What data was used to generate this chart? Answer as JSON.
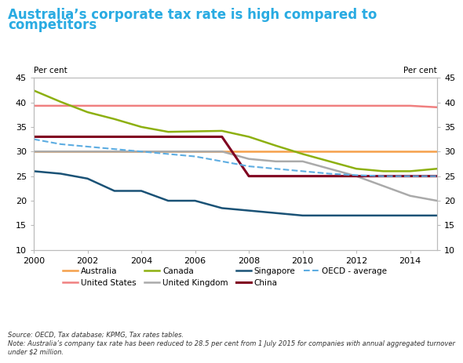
{
  "title_line1": "Australia’s corporate tax rate is high compared to",
  "title_line2": "competitors",
  "title_color": "#29abe2",
  "ylabel_left": "Per cent",
  "ylabel_right": "Per cent",
  "ylim": [
    10,
    45
  ],
  "yticks": [
    10,
    15,
    20,
    25,
    30,
    35,
    40,
    45
  ],
  "xticks": [
    2000,
    2002,
    2004,
    2006,
    2008,
    2010,
    2012,
    2014
  ],
  "source_text": "Source: OECD, Tax database; KPMG, Tax rates tables.\nNote: Australia’s company tax rate has been reduced to 28.5 per cent from 1 July 2015 for companies with annual aggregated turnover under $2 million.",
  "legend_order": [
    "Australia",
    "United States",
    "Canada",
    "United Kingdom",
    "Singapore",
    "China",
    "OECD - average"
  ],
  "series": {
    "Australia": {
      "color": "#f5a04a",
      "lw": 1.8,
      "style": "-",
      "data": {
        "2000": 30,
        "2001": 30,
        "2002": 30,
        "2003": 30,
        "2004": 30,
        "2005": 30,
        "2006": 30,
        "2007": 30,
        "2008": 30,
        "2009": 30,
        "2010": 30,
        "2011": 30,
        "2012": 30,
        "2013": 30,
        "2014": 30,
        "2015": 30
      }
    },
    "United States": {
      "color": "#f08080",
      "lw": 1.8,
      "style": "-",
      "data": {
        "2000": 39.3,
        "2001": 39.3,
        "2002": 39.3,
        "2003": 39.3,
        "2004": 39.3,
        "2005": 39.3,
        "2006": 39.3,
        "2007": 39.3,
        "2008": 39.3,
        "2009": 39.3,
        "2010": 39.3,
        "2011": 39.3,
        "2012": 39.3,
        "2013": 39.3,
        "2014": 39.3,
        "2015": 39.0
      }
    },
    "Canada": {
      "color": "#8db010",
      "lw": 1.8,
      "style": "-",
      "data": {
        "2000": 42.4,
        "2001": 40.1,
        "2002": 38.0,
        "2003": 36.6,
        "2004": 35.0,
        "2005": 34.0,
        "2006": 34.1,
        "2007": 34.2,
        "2008": 33.0,
        "2009": 31.2,
        "2010": 29.5,
        "2011": 28.0,
        "2012": 26.5,
        "2013": 26.0,
        "2014": 26.0,
        "2015": 26.5
      }
    },
    "United Kingdom": {
      "color": "#aaaaaa",
      "lw": 1.8,
      "style": "-",
      "data": {
        "2000": 30,
        "2001": 30,
        "2002": 30,
        "2003": 30,
        "2004": 30,
        "2005": 30,
        "2006": 30,
        "2007": 30,
        "2008": 28.5,
        "2009": 28,
        "2010": 28,
        "2011": 26.5,
        "2012": 25,
        "2013": 23,
        "2014": 21,
        "2015": 20
      }
    },
    "Singapore": {
      "color": "#1a5276",
      "lw": 1.8,
      "style": "-",
      "data": {
        "2000": 26,
        "2001": 25.5,
        "2002": 24.5,
        "2003": 22,
        "2004": 22,
        "2005": 20,
        "2006": 20,
        "2007": 18.5,
        "2008": 18,
        "2009": 17.5,
        "2010": 17,
        "2011": 17,
        "2012": 17,
        "2013": 17,
        "2014": 17,
        "2015": 17
      }
    },
    "China": {
      "color": "#800020",
      "lw": 2.2,
      "style": "-",
      "data": {
        "2000": 33,
        "2001": 33,
        "2002": 33,
        "2003": 33,
        "2004": 33,
        "2005": 33,
        "2006": 33,
        "2007": 33,
        "2008": 25,
        "2009": 25,
        "2010": 25,
        "2011": 25,
        "2012": 25,
        "2013": 25,
        "2014": 25,
        "2015": 25
      }
    },
    "OECD - average": {
      "color": "#5dade2",
      "lw": 1.5,
      "style": "--",
      "data": {
        "2000": 32.5,
        "2001": 31.5,
        "2002": 31.0,
        "2003": 30.5,
        "2004": 30.0,
        "2005": 29.5,
        "2006": 29.0,
        "2007": 28.0,
        "2008": 27.0,
        "2009": 26.5,
        "2010": 26.0,
        "2011": 25.5,
        "2012": 25.2,
        "2013": 25.0,
        "2014": 25.0,
        "2015": 25.0
      }
    }
  }
}
